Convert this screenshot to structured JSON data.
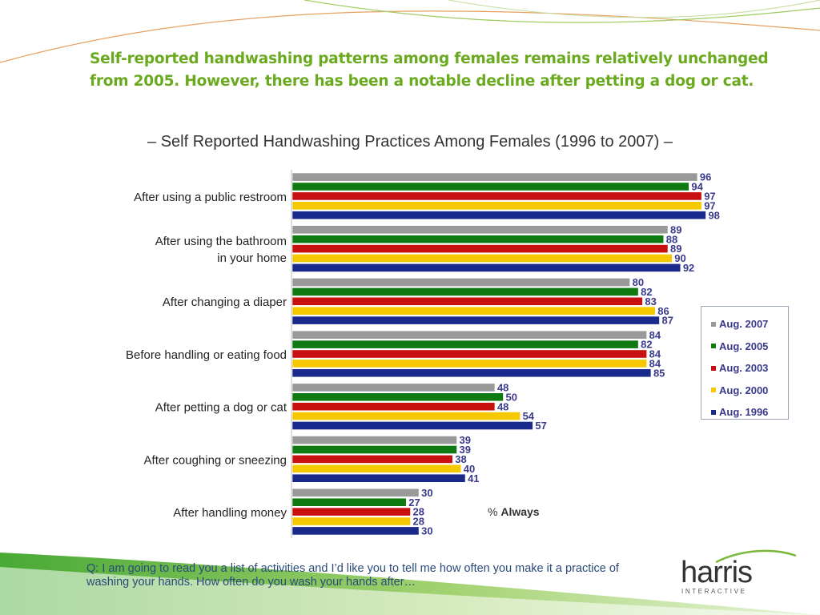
{
  "headline": "Self-reported handwashing patterns among females remains relatively unchanged from 2005. However, there has been a notable decline after petting a dog or cat.",
  "question": "Q: I am going to read you a list of activities and I’d like you to tell me how often you make it a practice of washing your hands. How often do you wash your hands after…",
  "unit_label": {
    "prefix": "%",
    "bold": "Always"
  },
  "logo": {
    "word": "harris",
    "sub": "INTERACTIVE"
  },
  "chart_data": {
    "type": "bar",
    "orientation": "horizontal",
    "title": "– Self Reported Handwashing Practices Among Females (1996 to 2007) –",
    "categories": [
      "After using a public restroom",
      "After using the bathroom in your home",
      "After changing a diaper",
      "Before handling or eating food",
      "After petting a dog or cat",
      "After coughing or sneezing",
      "After handling money"
    ],
    "series": [
      {
        "name": "Aug. 2007",
        "color": "#999999",
        "values": [
          96,
          89,
          80,
          84,
          48,
          39,
          30
        ]
      },
      {
        "name": "Aug. 2005",
        "color": "#0f7a12",
        "values": [
          94,
          88,
          82,
          82,
          50,
          39,
          27
        ]
      },
      {
        "name": "Aug. 2003",
        "color": "#c81010",
        "values": [
          97,
          89,
          83,
          84,
          48,
          38,
          28
        ]
      },
      {
        "name": "Aug. 2000",
        "color": "#f5c800",
        "values": [
          97,
          90,
          86,
          84,
          54,
          40,
          28
        ]
      },
      {
        "name": "Aug. 1996",
        "color": "#1a2a8c",
        "values": [
          98,
          92,
          87,
          85,
          57,
          41,
          30
        ]
      }
    ],
    "xlim": [
      0,
      100
    ],
    "legend": "right",
    "grid": false
  }
}
